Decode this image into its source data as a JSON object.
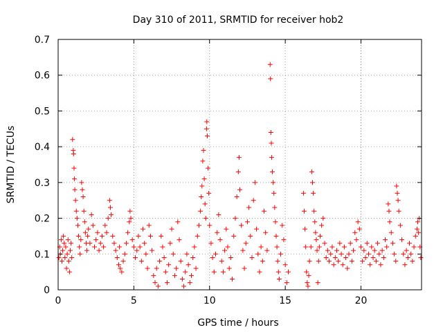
{
  "chart_data": {
    "type": "scatter",
    "title": "Day 310 of 2011, SRMTID for receiver hob2",
    "xlabel": "GPS time / hours",
    "ylabel": "SRMTID / TECUs",
    "xlim": [
      0,
      24
    ],
    "ylim": [
      0,
      0.7
    ],
    "xticks": [
      0,
      5,
      10,
      15,
      20
    ],
    "xtick_labels": [
      "0",
      "5",
      "10",
      "15",
      "20"
    ],
    "yticks": [
      0,
      0.1,
      0.2,
      0.3,
      0.4,
      0.5,
      0.6,
      0.7
    ],
    "ytick_labels": [
      "0",
      "0.1",
      "0.2",
      "0.3",
      "0.4",
      "0.5",
      "0.6",
      "0.7"
    ],
    "grid": true,
    "marker": "+",
    "color": "#ff0000",
    "series": [
      {
        "name": "SRMTID",
        "points": [
          [
            0.05,
            0.09
          ],
          [
            0.1,
            0.12
          ],
          [
            0.15,
            0.1
          ],
          [
            0.2,
            0.14
          ],
          [
            0.25,
            0.08
          ],
          [
            0.3,
            0.11
          ],
          [
            0.35,
            0.15
          ],
          [
            0.4,
            0.13
          ],
          [
            0.45,
            0.09
          ],
          [
            0.5,
            0.12
          ],
          [
            0.55,
            0.06
          ],
          [
            0.6,
            0.1
          ],
          [
            0.65,
            0.14
          ],
          [
            0.7,
            0.08
          ],
          [
            0.75,
            0.05
          ],
          [
            0.8,
            0.11
          ],
          [
            0.85,
            0.13
          ],
          [
            0.9,
            0.09
          ],
          [
            0.95,
            0.42
          ],
          [
            1.0,
            0.39
          ],
          [
            1.02,
            0.38
          ],
          [
            1.05,
            0.34
          ],
          [
            1.08,
            0.31
          ],
          [
            1.1,
            0.28
          ],
          [
            1.15,
            0.25
          ],
          [
            1.2,
            0.22
          ],
          [
            1.25,
            0.2
          ],
          [
            1.3,
            0.18
          ],
          [
            1.35,
            0.15
          ],
          [
            1.4,
            0.12
          ],
          [
            1.45,
            0.1
          ],
          [
            1.5,
            0.14
          ],
          [
            1.55,
            0.3
          ],
          [
            1.6,
            0.28
          ],
          [
            1.65,
            0.26
          ],
          [
            1.7,
            0.22
          ],
          [
            1.75,
            0.19
          ],
          [
            1.8,
            0.16
          ],
          [
            1.85,
            0.13
          ],
          [
            1.9,
            0.11
          ],
          [
            1.95,
            0.15
          ],
          [
            2.0,
            0.17
          ],
          [
            2.1,
            0.13
          ],
          [
            2.2,
            0.21
          ],
          [
            2.3,
            0.18
          ],
          [
            2.4,
            0.12
          ],
          [
            2.5,
            0.14
          ],
          [
            2.6,
            0.16
          ],
          [
            2.7,
            0.11
          ],
          [
            2.8,
            0.13
          ],
          [
            2.9,
            0.15
          ],
          [
            3.0,
            0.12
          ],
          [
            3.1,
            0.18
          ],
          [
            3.2,
            0.16
          ],
          [
            3.3,
            0.2
          ],
          [
            3.4,
            0.25
          ],
          [
            3.45,
            0.23
          ],
          [
            3.5,
            0.21
          ],
          [
            3.6,
            0.15
          ],
          [
            3.7,
            0.13
          ],
          [
            3.8,
            0.11
          ],
          [
            3.9,
            0.09
          ],
          [
            4.0,
            0.07
          ],
          [
            4.05,
            0.12
          ],
          [
            4.1,
            0.06
          ],
          [
            4.2,
            0.05
          ],
          [
            4.3,
            0.08
          ],
          [
            4.4,
            0.1
          ],
          [
            4.5,
            0.13
          ],
          [
            4.6,
            0.16
          ],
          [
            4.7,
            0.19
          ],
          [
            4.75,
            0.22
          ],
          [
            4.8,
            0.2
          ],
          [
            4.9,
            0.14
          ],
          [
            5.0,
            0.12
          ],
          [
            5.1,
            0.09
          ],
          [
            5.2,
            0.11
          ],
          [
            5.3,
            0.15
          ],
          [
            5.4,
            0.12
          ],
          [
            5.5,
            0.08
          ],
          [
            5.6,
            0.17
          ],
          [
            5.7,
            0.13
          ],
          [
            5.8,
            0.1
          ],
          [
            5.9,
            0.06
          ],
          [
            6.0,
            0.18
          ],
          [
            6.1,
            0.15
          ],
          [
            6.2,
            0.11
          ],
          [
            6.3,
            0.04
          ],
          [
            6.4,
            0.02
          ],
          [
            6.5,
            0.06
          ],
          [
            6.6,
            0.01
          ],
          [
            6.7,
            0.08
          ],
          [
            6.8,
            0.15
          ],
          [
            6.9,
            0.12
          ],
          [
            7.0,
            0.09
          ],
          [
            7.1,
            0.05
          ],
          [
            7.2,
            0.02
          ],
          [
            7.3,
            0.07
          ],
          [
            7.4,
            0.13
          ],
          [
            7.5,
            0.17
          ],
          [
            7.6,
            0.1
          ],
          [
            7.7,
            0.04
          ],
          [
            7.8,
            0.06
          ],
          [
            7.9,
            0.19
          ],
          [
            8.0,
            0.14
          ],
          [
            8.1,
            0.08
          ],
          [
            8.2,
            0.03
          ],
          [
            8.3,
            0.01
          ],
          [
            8.4,
            0.05
          ],
          [
            8.5,
            0.1
          ],
          [
            8.6,
            0.07
          ],
          [
            8.7,
            0.02
          ],
          [
            8.8,
            0.04
          ],
          [
            8.9,
            0.09
          ],
          [
            9.0,
            0.12
          ],
          [
            9.1,
            0.06
          ],
          [
            9.2,
            0.15
          ],
          [
            9.3,
            0.18
          ],
          [
            9.4,
            0.22
          ],
          [
            9.45,
            0.26
          ],
          [
            9.5,
            0.29
          ],
          [
            9.55,
            0.36
          ],
          [
            9.6,
            0.39
          ],
          [
            9.65,
            0.31
          ],
          [
            9.7,
            0.24
          ],
          [
            9.75,
            0.2
          ],
          [
            9.8,
            0.45
          ],
          [
            9.82,
            0.47
          ],
          [
            9.85,
            0.43
          ],
          [
            9.9,
            0.34
          ],
          [
            9.95,
            0.27
          ],
          [
            10.0,
            0.18
          ],
          [
            10.1,
            0.13
          ],
          [
            10.2,
            0.09
          ],
          [
            10.3,
            0.05
          ],
          [
            10.4,
            0.1
          ],
          [
            10.5,
            0.16
          ],
          [
            10.6,
            0.21
          ],
          [
            10.7,
            0.14
          ],
          [
            10.8,
            0.08
          ],
          [
            10.9,
            0.05
          ],
          [
            11.0,
            0.11
          ],
          [
            11.1,
            0.17
          ],
          [
            11.2,
            0.12
          ],
          [
            11.3,
            0.06
          ],
          [
            11.4,
            0.09
          ],
          [
            11.5,
            0.03
          ],
          [
            11.6,
            0.15
          ],
          [
            11.7,
            0.2
          ],
          [
            11.8,
            0.26
          ],
          [
            11.9,
            0.33
          ],
          [
            11.95,
            0.37
          ],
          [
            12.0,
            0.28
          ],
          [
            12.1,
            0.18
          ],
          [
            12.2,
            0.11
          ],
          [
            12.3,
            0.06
          ],
          [
            12.4,
            0.13
          ],
          [
            12.5,
            0.19
          ],
          [
            12.6,
            0.23
          ],
          [
            12.7,
            0.15
          ],
          [
            12.8,
            0.09
          ],
          [
            12.9,
            0.25
          ],
          [
            13.0,
            0.3
          ],
          [
            13.1,
            0.17
          ],
          [
            13.2,
            0.1
          ],
          [
            13.3,
            0.05
          ],
          [
            13.4,
            0.12
          ],
          [
            13.5,
            0.08
          ],
          [
            13.6,
            0.22
          ],
          [
            13.7,
            0.16
          ],
          [
            13.8,
            0.11
          ],
          [
            14.0,
            0.63
          ],
          [
            14.02,
            0.59
          ],
          [
            14.05,
            0.44
          ],
          [
            14.08,
            0.41
          ],
          [
            14.1,
            0.37
          ],
          [
            14.15,
            0.33
          ],
          [
            14.2,
            0.3
          ],
          [
            14.25,
            0.27
          ],
          [
            14.3,
            0.23
          ],
          [
            14.35,
            0.19
          ],
          [
            14.4,
            0.15
          ],
          [
            14.45,
            0.12
          ],
          [
            14.5,
            0.08
          ],
          [
            14.55,
            0.05
          ],
          [
            14.6,
            0.03
          ],
          [
            14.7,
            0.1
          ],
          [
            14.8,
            0.18
          ],
          [
            14.9,
            0.14
          ],
          [
            15.0,
            0.07
          ],
          [
            15.1,
            0.02
          ],
          [
            15.2,
            0.05
          ],
          [
            16.2,
            0.27
          ],
          [
            16.25,
            0.22
          ],
          [
            16.3,
            0.17
          ],
          [
            16.35,
            0.12
          ],
          [
            16.4,
            0.05
          ],
          [
            16.45,
            0.02
          ],
          [
            16.5,
            0.01
          ],
          [
            16.55,
            0.04
          ],
          [
            16.6,
            0.08
          ],
          [
            16.7,
            0.12
          ],
          [
            16.75,
            0.33
          ],
          [
            16.8,
            0.3
          ],
          [
            16.85,
            0.27
          ],
          [
            16.9,
            0.22
          ],
          [
            16.95,
            0.19
          ],
          [
            17.0,
            0.16
          ],
          [
            17.05,
            0.14
          ],
          [
            17.1,
            0.11
          ],
          [
            17.15,
            0.02
          ],
          [
            17.2,
            0.08
          ],
          [
            17.25,
            0.12
          ],
          [
            17.3,
            0.15
          ],
          [
            17.4,
            0.18
          ],
          [
            17.5,
            0.2
          ],
          [
            17.6,
            0.13
          ],
          [
            17.7,
            0.09
          ],
          [
            17.8,
            0.11
          ],
          [
            17.9,
            0.08
          ],
          [
            18.0,
            0.1
          ],
          [
            18.1,
            0.12
          ],
          [
            18.2,
            0.07
          ],
          [
            18.3,
            0.09
          ],
          [
            18.4,
            0.11
          ],
          [
            18.5,
            0.08
          ],
          [
            18.6,
            0.13
          ],
          [
            18.7,
            0.1
          ],
          [
            18.8,
            0.07
          ],
          [
            18.9,
            0.12
          ],
          [
            19.0,
            0.09
          ],
          [
            19.1,
            0.06
          ],
          [
            19.2,
            0.1
          ],
          [
            19.3,
            0.13
          ],
          [
            19.4,
            0.08
          ],
          [
            19.5,
            0.11
          ],
          [
            19.6,
            0.16
          ],
          [
            19.7,
            0.14
          ],
          [
            19.8,
            0.19
          ],
          [
            19.9,
            0.17
          ],
          [
            20.0,
            0.12
          ],
          [
            20.1,
            0.08
          ],
          [
            20.2,
            0.11
          ],
          [
            20.3,
            0.09
          ],
          [
            20.4,
            0.13
          ],
          [
            20.5,
            0.1
          ],
          [
            20.6,
            0.07
          ],
          [
            20.7,
            0.12
          ],
          [
            20.8,
            0.09
          ],
          [
            20.9,
            0.11
          ],
          [
            21.0,
            0.08
          ],
          [
            21.1,
            0.13
          ],
          [
            21.2,
            0.1
          ],
          [
            21.3,
            0.07
          ],
          [
            21.4,
            0.11
          ],
          [
            21.5,
            0.09
          ],
          [
            21.6,
            0.14
          ],
          [
            21.7,
            0.12
          ],
          [
            21.8,
            0.24
          ],
          [
            21.85,
            0.22
          ],
          [
            21.9,
            0.19
          ],
          [
            22.0,
            0.16
          ],
          [
            22.1,
            0.13
          ],
          [
            22.2,
            0.1
          ],
          [
            22.3,
            0.08
          ],
          [
            22.35,
            0.29
          ],
          [
            22.4,
            0.27
          ],
          [
            22.45,
            0.25
          ],
          [
            22.5,
            0.22
          ],
          [
            22.6,
            0.18
          ],
          [
            22.7,
            0.14
          ],
          [
            22.8,
            0.1
          ],
          [
            22.9,
            0.07
          ],
          [
            23.0,
            0.11
          ],
          [
            23.1,
            0.09
          ],
          [
            23.2,
            0.13
          ],
          [
            23.3,
            0.1
          ],
          [
            23.4,
            0.08
          ],
          [
            23.5,
            0.12
          ],
          [
            23.6,
            0.15
          ],
          [
            23.7,
            0.17
          ],
          [
            23.75,
            0.19
          ],
          [
            23.8,
            0.16
          ],
          [
            23.85,
            0.2
          ],
          [
            23.9,
            0.12
          ],
          [
            23.95,
            0.09
          ]
        ]
      }
    ]
  }
}
